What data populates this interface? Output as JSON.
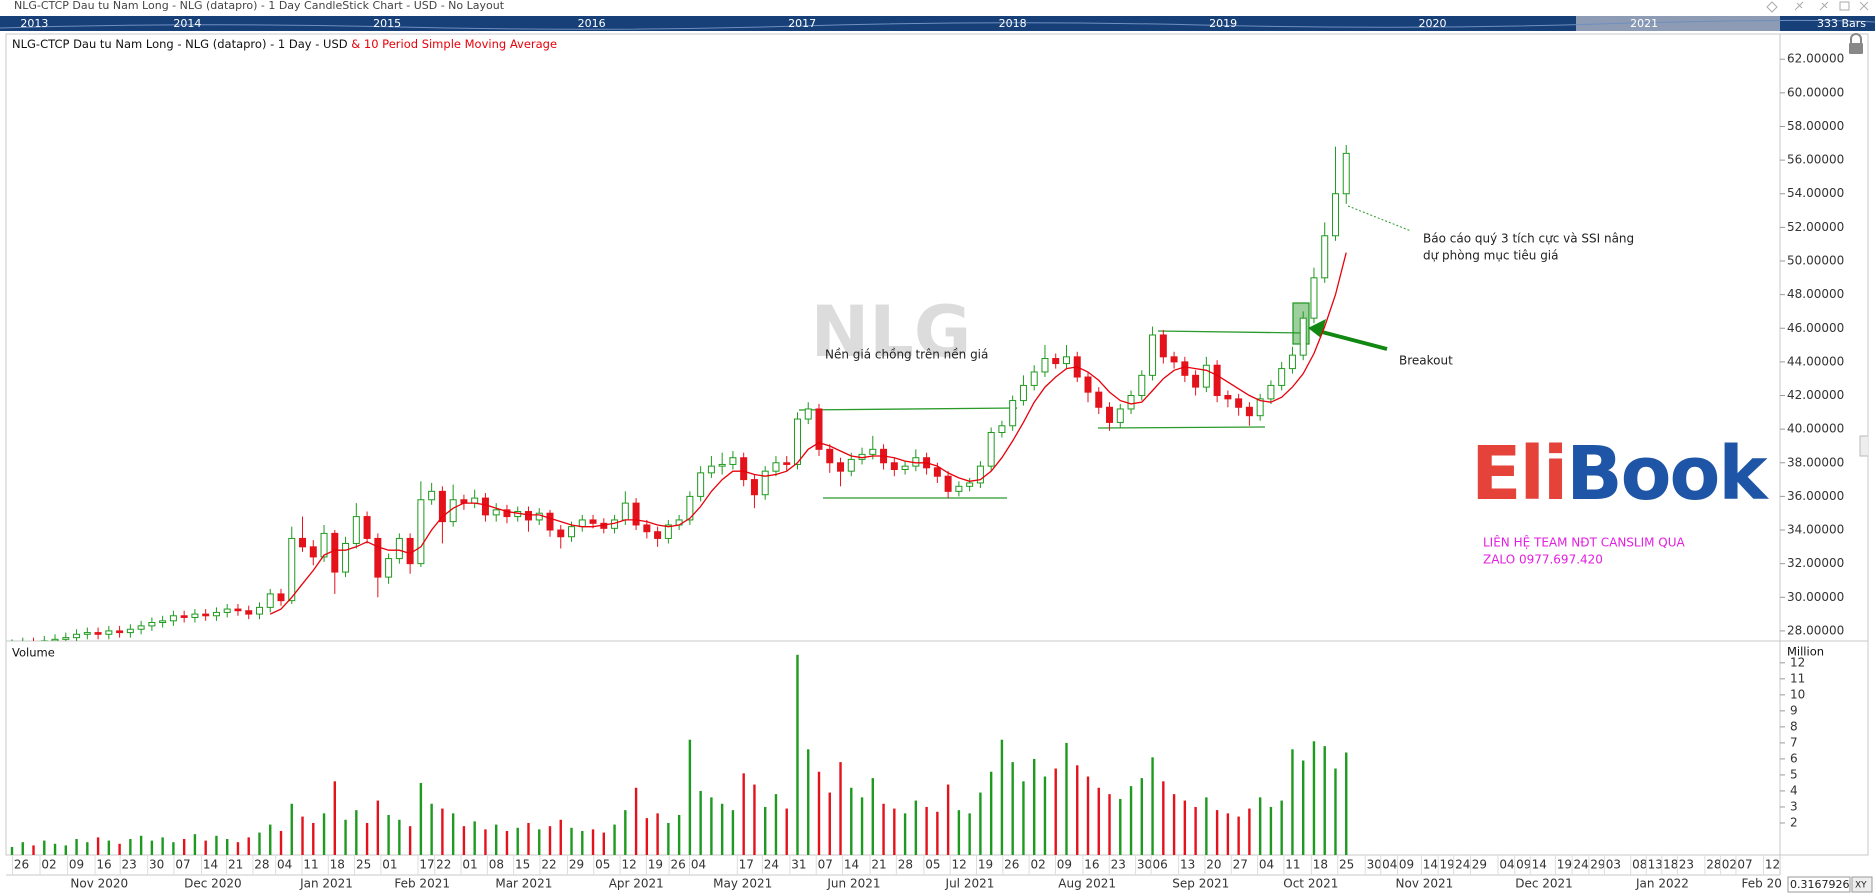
{
  "header": "NLG-CTCP Dau tu Nam Long - NLG (datapro) - 1 Day CandleStick Chart - USD - No Layout",
  "timeline": {
    "years": [
      "2013",
      "2014",
      "2015",
      "2016",
      "2017",
      "2018",
      "2019",
      "2020",
      "2021"
    ],
    "bars_label": "333 Bars"
  },
  "chart_data": [
    {
      "type": "candlestick",
      "title": "NLG-CTCP Dau tu Nam Long - NLG (datapro) - 1 Day - USD",
      "watermark": "NLG",
      "up_color": "#1e9a1e",
      "down_color": "#e3121b",
      "open": [
        27.1,
        27.2,
        27.3,
        27.2,
        27.4,
        27.5,
        27.6,
        27.8,
        27.9,
        27.8,
        28.0,
        27.9,
        28.1,
        28.3,
        28.5,
        28.6,
        28.9,
        28.8,
        29.0,
        28.9,
        29.1,
        29.3,
        29.2,
        29.0,
        29.4,
        30.2,
        29.8,
        33.5,
        33.0,
        32.4,
        33.8,
        31.5,
        33.2,
        34.8,
        33.5,
        31.2,
        32.3,
        33.5,
        32.0,
        35.8,
        36.3,
        34.5,
        35.8,
        35.6,
        35.9,
        34.9,
        35.2,
        34.8,
        35.1,
        34.6,
        35.0,
        34.0,
        33.6,
        34.2,
        34.6,
        34.4,
        34.1,
        34.6,
        35.6,
        34.3,
        33.9,
        33.5,
        34.3,
        34.6,
        36.0,
        37.4,
        37.8,
        37.9,
        38.3,
        37.0,
        36.1,
        37.5,
        38.0,
        37.9,
        40.6,
        41.2,
        38.8,
        38.0,
        37.5,
        38.2,
        38.5,
        38.8,
        38.0,
        37.6,
        37.8,
        38.3,
        37.7,
        37.2,
        36.3,
        36.6,
        36.8,
        37.8,
        39.8,
        40.2,
        41.7,
        42.6,
        43.4,
        44.2,
        43.9,
        44.3,
        43.1,
        42.2,
        41.3,
        40.4,
        41.2,
        42.0,
        43.2,
        45.6,
        44.3,
        44.0,
        43.2,
        42.5,
        43.8,
        42.0,
        41.8,
        41.3,
        40.8,
        41.8,
        42.6,
        43.6,
        44.4,
        46.6,
        49.0,
        51.5,
        54.0
      ],
      "high": [
        27.5,
        27.6,
        27.6,
        27.7,
        27.8,
        27.9,
        28.1,
        28.2,
        28.2,
        28.3,
        28.3,
        28.4,
        28.6,
        28.8,
        28.9,
        29.2,
        29.2,
        29.3,
        29.3,
        29.4,
        29.6,
        29.6,
        29.5,
        29.7,
        30.5,
        30.5,
        34.2,
        34.8,
        33.4,
        34.3,
        34.0,
        33.6,
        35.6,
        35.1,
        33.8,
        32.6,
        33.8,
        33.8,
        36.9,
        36.8,
        36.6,
        36.7,
        36.1,
        36.4,
        36.2,
        35.6,
        35.5,
        35.4,
        35.4,
        35.3,
        35.2,
        34.3,
        34.5,
        34.9,
        34.9,
        34.7,
        34.9,
        36.3,
        35.9,
        34.6,
        34.2,
        34.6,
        34.9,
        36.3,
        37.8,
        38.4,
        38.6,
        38.7,
        38.6,
        37.3,
        37.8,
        38.4,
        38.4,
        41.0,
        41.6,
        41.5,
        39.1,
        38.3,
        38.6,
        38.9,
        39.6,
        39.1,
        38.3,
        38.1,
        38.8,
        38.6,
        38.0,
        37.5,
        36.9,
        37.1,
        38.1,
        40.1,
        40.5,
        42.0,
        43.2,
        43.8,
        45.0,
        44.5,
        45.0,
        44.6,
        43.4,
        42.5,
        41.6,
        41.5,
        42.3,
        43.5,
        46.1,
        45.9,
        44.6,
        44.3,
        43.5,
        44.3,
        44.1,
        42.3,
        42.1,
        41.6,
        42.1,
        42.9,
        44.0,
        44.9,
        47.0,
        49.6,
        52.3,
        56.8,
        56.9
      ],
      "low": [
        26.8,
        26.9,
        26.9,
        26.9,
        27.1,
        27.2,
        27.3,
        27.5,
        27.5,
        27.5,
        27.6,
        27.6,
        27.8,
        28.0,
        28.2,
        28.3,
        28.5,
        28.5,
        28.6,
        28.6,
        28.8,
        28.9,
        28.7,
        28.7,
        29.1,
        29.5,
        29.6,
        32.7,
        31.9,
        32.1,
        30.2,
        31.2,
        32.9,
        33.2,
        30.0,
        30.8,
        32.0,
        31.4,
        31.8,
        35.5,
        33.2,
        34.2,
        35.2,
        35.3,
        34.5,
        34.5,
        34.4,
        34.5,
        33.9,
        34.3,
        33.6,
        32.9,
        33.3,
        33.9,
        34.1,
        33.8,
        33.8,
        34.3,
        34.0,
        33.5,
        33.0,
        33.2,
        34.0,
        34.3,
        35.7,
        37.1,
        37.3,
        37.6,
        36.6,
        35.3,
        35.8,
        37.2,
        37.5,
        37.6,
        40.3,
        38.4,
        37.4,
        36.6,
        37.2,
        37.9,
        38.2,
        37.6,
        37.2,
        37.3,
        37.5,
        37.3,
        36.8,
        35.9,
        36.0,
        36.3,
        36.5,
        37.5,
        39.5,
        39.9,
        41.4,
        42.3,
        43.1,
        43.6,
        43.6,
        42.8,
        41.6,
        40.9,
        39.9,
        40.1,
        40.9,
        41.7,
        42.9,
        43.9,
        43.6,
        42.8,
        42.0,
        42.2,
        41.6,
        41.3,
        40.8,
        40.2,
        40.5,
        41.5,
        42.3,
        43.3,
        44.1,
        46.3,
        48.7,
        51.2,
        53.4
      ],
      "close": [
        27.2,
        27.3,
        27.2,
        27.4,
        27.5,
        27.6,
        27.8,
        27.9,
        27.8,
        28.0,
        27.9,
        28.1,
        28.3,
        28.5,
        28.6,
        28.9,
        28.8,
        29.0,
        28.9,
        29.1,
        29.3,
        29.2,
        29.0,
        29.4,
        30.2,
        29.8,
        33.5,
        33.0,
        32.4,
        33.8,
        31.5,
        33.2,
        34.8,
        33.5,
        31.2,
        32.3,
        33.5,
        32.0,
        35.8,
        36.3,
        34.5,
        35.8,
        35.6,
        35.9,
        34.9,
        35.2,
        34.8,
        35.1,
        34.6,
        35.0,
        34.0,
        33.6,
        34.2,
        34.6,
        34.4,
        34.1,
        34.6,
        35.6,
        34.3,
        33.9,
        33.5,
        34.3,
        34.6,
        36.0,
        37.4,
        37.8,
        37.9,
        38.3,
        37.0,
        36.1,
        37.5,
        38.0,
        37.9,
        40.6,
        41.2,
        38.8,
        38.0,
        37.5,
        38.2,
        38.5,
        38.8,
        38.0,
        37.6,
        37.8,
        38.3,
        37.7,
        37.2,
        36.3,
        36.6,
        36.8,
        37.8,
        39.8,
        40.2,
        41.7,
        42.6,
        43.4,
        44.2,
        43.9,
        44.3,
        43.1,
        42.2,
        41.3,
        40.4,
        41.2,
        42.0,
        43.2,
        45.6,
        44.3,
        44.0,
        43.2,
        42.5,
        43.8,
        42.0,
        41.8,
        41.3,
        40.8,
        41.8,
        42.6,
        43.6,
        44.4,
        46.6,
        49.0,
        51.5,
        54.0,
        56.4
      ],
      "series": [
        {
          "name": "& 10 Period Simple Moving Average",
          "color": "#e8000b",
          "values": [
            null,
            null,
            null,
            null,
            null,
            null,
            null,
            null,
            null,
            null,
            null,
            null,
            null,
            null,
            null,
            null,
            null,
            null,
            null,
            null,
            null,
            null,
            null,
            null,
            29.0,
            29.3,
            30.0,
            30.8,
            31.6,
            32.5,
            32.8,
            32.8,
            33.0,
            33.3,
            33.0,
            32.8,
            32.8,
            32.6,
            33.0,
            34.0,
            34.8,
            35.3,
            35.6,
            35.6,
            35.5,
            35.3,
            35.1,
            35.0,
            34.9,
            34.9,
            34.7,
            34.5,
            34.3,
            34.2,
            34.2,
            34.3,
            34.4,
            34.6,
            34.6,
            34.5,
            34.3,
            34.2,
            34.3,
            34.7,
            35.4,
            36.3,
            37.0,
            37.5,
            37.5,
            37.3,
            37.2,
            37.3,
            37.5,
            38.0,
            38.8,
            39.2,
            39.0,
            38.7,
            38.4,
            38.3,
            38.4,
            38.4,
            38.3,
            38.1,
            38.0,
            38.0,
            37.8,
            37.4,
            37.1,
            36.9,
            37.0,
            37.5,
            38.3,
            39.3,
            40.4,
            41.6,
            42.5,
            43.1,
            43.6,
            43.7,
            43.4,
            42.9,
            42.2,
            41.7,
            41.5,
            41.6,
            42.3,
            43.0,
            43.5,
            43.7,
            43.6,
            43.5,
            43.2,
            42.8,
            42.4,
            42.0,
            41.7,
            41.6,
            41.9,
            42.5,
            43.3,
            44.5,
            46.1,
            48.0,
            50.5
          ]
        }
      ],
      "ylim": [
        27.4,
        63.5
      ],
      "yticks": [
        {
          "value": 28,
          "label": "28.00000"
        },
        {
          "value": 30,
          "label": "30.00000"
        },
        {
          "value": 32,
          "label": "32.00000"
        },
        {
          "value": 34,
          "label": "34.00000"
        },
        {
          "value": 36,
          "label": "36.00000"
        },
        {
          "value": 38,
          "label": "38.00000"
        },
        {
          "value": 40,
          "label": "40.00000"
        },
        {
          "value": 42,
          "label": "42.00000"
        },
        {
          "value": 44,
          "label": "44.00000"
        },
        {
          "value": 46,
          "label": "46.00000"
        },
        {
          "value": 48,
          "label": "48.00000"
        },
        {
          "value": 50,
          "label": "50.00000"
        },
        {
          "value": 52,
          "label": "52.00000"
        },
        {
          "value": 54,
          "label": "54.00000"
        },
        {
          "value": 56,
          "label": "56.00000"
        },
        {
          "value": 58,
          "label": "58.00000"
        },
        {
          "value": 60,
          "label": "60.00000"
        },
        {
          "value": 62,
          "label": "62.00000"
        }
      ]
    },
    {
      "type": "volume",
      "title": "Volume",
      "unit_label": "Million",
      "values": [
        0.5,
        0.8,
        0.6,
        0.9,
        0.7,
        0.6,
        1.0,
        0.8,
        1.1,
        0.9,
        0.7,
        1.0,
        1.2,
        0.9,
        1.1,
        0.8,
        1.0,
        1.3,
        0.9,
        1.2,
        1.0,
        0.8,
        1.1,
        1.4,
        1.9,
        1.5,
        3.2,
        2.4,
        2.0,
        2.6,
        4.6,
        2.2,
        2.8,
        2.0,
        3.4,
        2.5,
        2.2,
        1.8,
        4.5,
        3.2,
        2.9,
        2.6,
        1.8,
        2.1,
        1.6,
        1.9,
        1.5,
        1.7,
        2.0,
        1.6,
        1.8,
        2.2,
        1.7,
        1.5,
        1.6,
        1.4,
        1.9,
        2.8,
        4.2,
        2.3,
        2.6,
        2.0,
        2.5,
        7.2,
        4.0,
        3.6,
        3.2,
        2.8,
        5.1,
        4.4,
        3.0,
        3.8,
        2.9,
        12.5,
        6.6,
        5.2,
        3.9,
        5.8,
        4.2,
        3.6,
        4.8,
        3.2,
        2.9,
        2.6,
        3.4,
        3.0,
        2.7,
        4.4,
        2.8,
        2.6,
        3.9,
        5.2,
        7.2,
        5.8,
        4.6,
        6.0,
        4.9,
        5.4,
        7.0,
        5.6,
        4.9,
        4.2,
        3.8,
        3.5,
        4.3,
        4.8,
        6.1,
        4.6,
        3.8,
        3.4,
        3.0,
        3.6,
        2.8,
        2.6,
        2.4,
        2.9,
        3.6,
        3.0,
        3.4,
        6.6,
        5.9,
        7.1,
        6.8,
        5.4,
        6.4
      ],
      "ylim": [
        0,
        13.3
      ],
      "yticks": [
        2,
        3,
        4,
        5,
        6,
        7,
        8,
        9,
        10,
        11,
        12
      ]
    }
  ],
  "x_axis": {
    "days": [
      "26",
      "02",
      "09",
      "16",
      "23",
      "30",
      "07",
      "14",
      "21",
      "28",
      "04",
      "11",
      "18",
      "25",
      "01",
      "17",
      "22",
      "01",
      "08",
      "15",
      "22",
      "29",
      "05",
      "12",
      "19",
      "26",
      "04",
      "17",
      "24",
      "31",
      "07",
      "14",
      "21",
      "28",
      "05",
      "12",
      "19",
      "26",
      "02",
      "09",
      "16",
      "23",
      "30",
      "06",
      "13",
      "20",
      "27",
      "04",
      "11",
      "18",
      "25",
      "30",
      "04",
      "09",
      "14",
      "19",
      "24",
      "29",
      "04",
      "09",
      "14",
      "19",
      "24",
      "29",
      "03",
      "08",
      "13",
      "18",
      "23",
      "28",
      "02",
      "07",
      "12"
    ],
    "months": [
      "Nov 2020",
      "Dec 2020",
      "Jan 2021",
      "Feb 2021",
      "Mar 2021",
      "Apr 2021",
      "May 2021",
      "Jun 2021",
      "Jul 2021",
      "Aug 2021",
      "Sep 2021",
      "Oct 2021",
      "Nov 2021",
      "Dec 2021",
      "Jan 2022",
      "Feb 20"
    ],
    "cursor_value": "0.3167926",
    "xy_button": "XY"
  },
  "annotations": {
    "base": "Nền giá chồng trên nền giá",
    "report": [
      "Báo cáo quý 3 tích cực và SSI nâng",
      "dự phòng mục tiêu giá"
    ],
    "breakout": "Breakout",
    "logo": [
      "Eli",
      "Book"
    ],
    "contact": [
      "LIÊN HỆ TEAM NĐT CANSLIM QUA",
      "ZALO 0977.697.420"
    ]
  }
}
